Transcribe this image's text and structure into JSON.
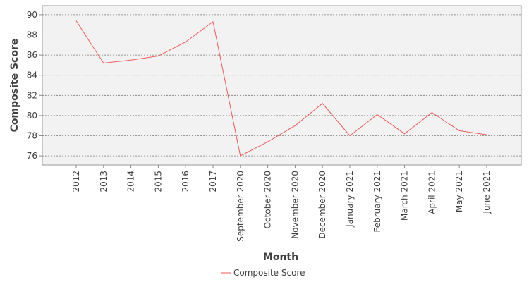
{
  "chart_data": {
    "type": "line",
    "title": "",
    "xlabel": "Month",
    "ylabel": "Composite Score",
    "categories": [
      "2012",
      "2013",
      "2014",
      "2015",
      "2016",
      "2017",
      "September 2020",
      "October 2020",
      "November 2020",
      "December 2020",
      "January 2021",
      "February 2021",
      "March 2021",
      "April 2021",
      "May 2021",
      "June 2021"
    ],
    "series": [
      {
        "name": "Composite Score",
        "color": "#f05a5a",
        "values": [
          89.4,
          85.2,
          85.5,
          85.9,
          87.3,
          89.3,
          76.0,
          77.4,
          79.0,
          81.2,
          78.0,
          80.1,
          78.2,
          80.3,
          78.5,
          78.1
        ]
      }
    ],
    "ylim": [
      75.1,
      90.9
    ],
    "yticks": [
      76,
      78,
      80,
      82,
      84,
      86,
      88,
      90
    ],
    "grid": true,
    "legend_position": "bottom-center"
  }
}
